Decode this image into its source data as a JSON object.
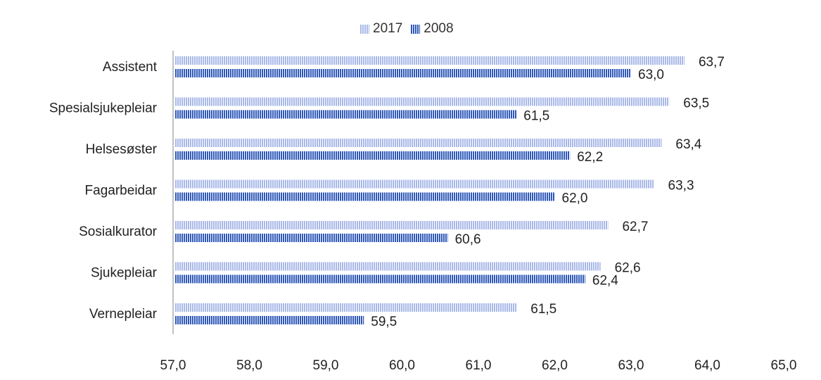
{
  "chart_data": {
    "type": "bar",
    "orientation": "horizontal",
    "categories": [
      "Assistent",
      "Spesialsjukepleiar",
      "Helsesøster",
      "Fagarbeidar",
      "Sosialkurator",
      "Sjukepleiar",
      "Vernepleiar"
    ],
    "series": [
      {
        "name": "2017",
        "values": [
          63.7,
          63.5,
          63.4,
          63.3,
          62.7,
          62.6,
          61.5
        ],
        "labels": [
          "63,7",
          "63,5",
          "63,4",
          "63,3",
          "62,7",
          "62,6",
          "61,5"
        ],
        "color": "#a8b8e8"
      },
      {
        "name": "2008",
        "values": [
          63.0,
          61.5,
          62.2,
          62.0,
          60.6,
          62.4,
          59.5
        ],
        "labels": [
          "63,0",
          "61,5",
          "62,2",
          "62,0",
          "60,6",
          "62,4",
          "59,5"
        ],
        "color": "#2e58b8"
      }
    ],
    "xlim": [
      57.0,
      65.0
    ],
    "xticks": [
      "57,0",
      "58,0",
      "59,0",
      "60,0",
      "61,0",
      "62,0",
      "63,0",
      "64,0",
      "65,0"
    ],
    "title": "",
    "xlabel": "",
    "ylabel": "",
    "legend_position": "top-center",
    "grid": false
  }
}
